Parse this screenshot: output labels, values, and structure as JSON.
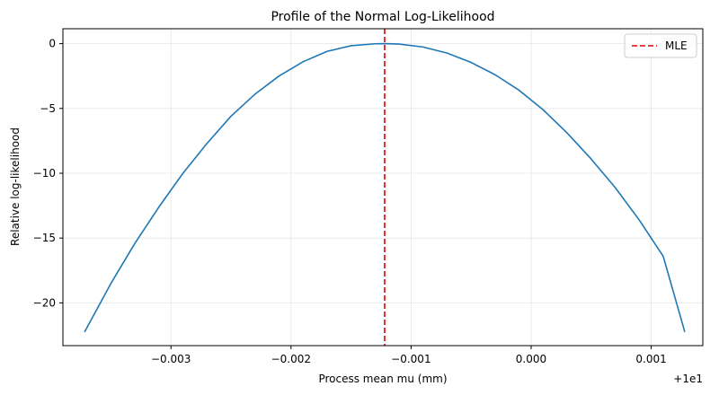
{
  "chart_data": {
    "type": "line",
    "title": "Profile of the Normal Log-Likelihood",
    "xlabel": "Process mean mu (mm)",
    "ylabel": "Relative log-likelihood",
    "x_offset_label": "+1e1",
    "xlim": [
      -0.0039,
      0.00143
    ],
    "ylim": [
      -23.3,
      1.15
    ],
    "x_ticks": [
      -0.003,
      -0.002,
      -0.001,
      0.0,
      0.001
    ],
    "x_tick_labels": [
      "−0.003",
      "−0.002",
      "−0.001",
      "0.000",
      "0.001"
    ],
    "y_ticks": [
      0,
      -5,
      -10,
      -15,
      -20
    ],
    "y_tick_labels": [
      "0",
      "−5",
      "−10",
      "−15",
      "−20"
    ],
    "grid": true,
    "legend_position": "top-right",
    "series": [
      {
        "name": "",
        "color": "#1f77b4",
        "style": "solid",
        "x": [
          -0.00372,
          -0.0035,
          -0.0033,
          -0.0031,
          -0.0029,
          -0.0027,
          -0.0025,
          -0.0023,
          -0.0021,
          -0.0019,
          -0.0017,
          -0.0015,
          -0.0013,
          -0.00122,
          -0.0011,
          -0.0009,
          -0.0007,
          -0.0005,
          -0.0003,
          -0.0001,
          0.0001,
          0.0003,
          0.0005,
          0.0007,
          0.0009,
          0.0011,
          0.00128
        ],
        "y": [
          -22.25,
          -18.5,
          -15.4,
          -12.6,
          -10.0,
          -7.7,
          -5.6,
          -3.9,
          -2.5,
          -1.4,
          -0.6,
          -0.16,
          -0.01,
          0.0,
          -0.03,
          -0.26,
          -0.73,
          -1.45,
          -2.4,
          -3.6,
          -5.1,
          -6.9,
          -8.9,
          -11.1,
          -13.6,
          -16.4,
          -22.25
        ]
      }
    ],
    "vlines": [
      {
        "name": "MLE",
        "x": -0.00122,
        "color": "#e00000",
        "style": "dashed"
      }
    ]
  }
}
